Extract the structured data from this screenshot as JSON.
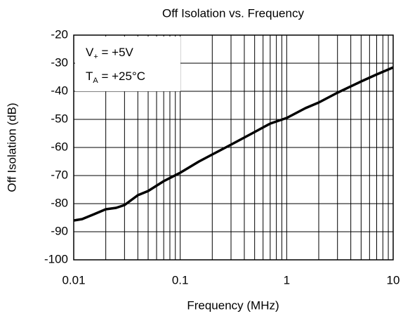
{
  "chart_data": {
    "type": "line",
    "title": "Off Isolation vs. Frequency",
    "x_label": "Frequency (MHz)",
    "y_label": "Off Isolation (dB)",
    "annotations": [
      {
        "main": "V",
        "sub": "+",
        "rest": " = +5V"
      },
      {
        "main": "T",
        "sub": "A",
        "rest": " = +25°C"
      }
    ],
    "x": [
      0.01,
      0.012,
      0.015,
      0.02,
      0.025,
      0.03,
      0.04,
      0.05,
      0.07,
      0.1,
      0.15,
      0.2,
      0.3,
      0.5,
      0.7,
      1,
      1.5,
      2,
      3,
      5,
      7,
      10
    ],
    "series": [
      {
        "color": "#000000",
        "values": [
          -86,
          -85.5,
          -84,
          -82,
          -81.5,
          -80.5,
          -77,
          -75.5,
          -72,
          -69,
          -65,
          -62.5,
          -59,
          -54.5,
          -51.5,
          -49.5,
          -46,
          -44,
          -40.5,
          -36.5,
          -34,
          -31.5
        ]
      }
    ],
    "xlog": true,
    "xlim": [
      0.01,
      10
    ],
    "xticks": [
      0.01,
      0.1,
      1,
      10
    ],
    "ylim": [
      -100,
      -20
    ],
    "yticks": [
      -100,
      -90,
      -80,
      -70,
      -60,
      -50,
      -40,
      -30,
      -20
    ],
    "grid": true,
    "minor_grid": true
  }
}
